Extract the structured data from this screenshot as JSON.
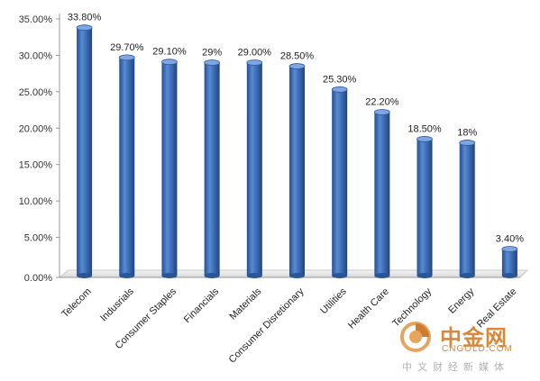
{
  "chart_data": {
    "type": "bar",
    "categories": [
      "Telecom",
      "Indusrials",
      "Consumer Staples",
      "Financials",
      "Materials",
      "Consumer Disretionary",
      "Utilities",
      "Health Care",
      "Technology",
      "Energy",
      "Real Estate"
    ],
    "values": [
      33.8,
      29.7,
      29.1,
      29.0,
      29.0,
      28.5,
      25.3,
      22.2,
      18.5,
      18.0,
      3.4
    ],
    "data_labels": [
      "33.80%",
      "29.70%",
      "29.10%",
      "29%",
      "29.00%",
      "28.50%",
      "25.30%",
      "22.20%",
      "18.50%",
      "18%",
      "3.40%"
    ],
    "yticks": [
      "0.00%",
      "5.00%",
      "10.00%",
      "15.00%",
      "20.00%",
      "25.00%",
      "30.00%",
      "35.00%"
    ],
    "ylim": [
      0,
      35
    ],
    "title": "",
    "xlabel": "",
    "ylabel": "",
    "grid": false,
    "bar_color": "#3e6fb8",
    "bar_dark": "#1f4a8c",
    "bar_light": "#7fa6e0"
  },
  "watermark": {
    "title": "中金网",
    "site": "CNGOLD.COM",
    "tagline": "中文财经新媒体",
    "logo_color": "#d9873b"
  }
}
